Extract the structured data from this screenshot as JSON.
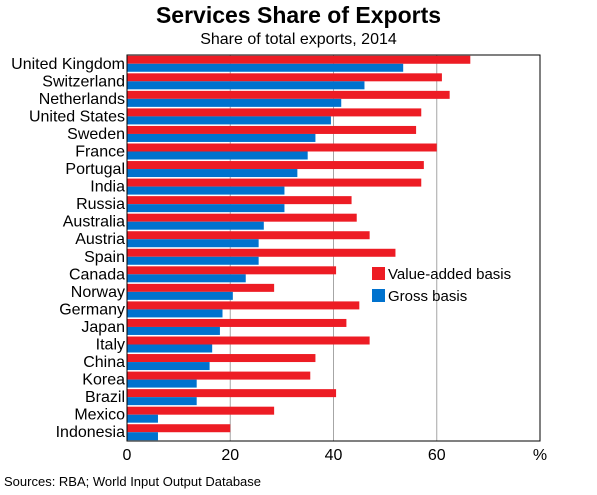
{
  "chart_data": {
    "type": "bar",
    "orientation": "horizontal",
    "title": "Services Share of Exports",
    "subtitle": "Share of total exports, 2014",
    "categories": [
      "United Kingdom",
      "Switzerland",
      "Netherlands",
      "United States",
      "Sweden",
      "France",
      "Portugal",
      "India",
      "Russia",
      "Australia",
      "Austria",
      "Spain",
      "Canada",
      "Norway",
      "Germany",
      "Japan",
      "Italy",
      "China",
      "Korea",
      "Brazil",
      "Mexico",
      "Indonesia"
    ],
    "series": [
      {
        "name": "Value-added basis",
        "color": "#ed1c24",
        "values": [
          66.5,
          61,
          62.5,
          57,
          56,
          60,
          57.5,
          57,
          43.5,
          44.5,
          47,
          52,
          40.5,
          28.5,
          45,
          42.5,
          47,
          36.5,
          35.5,
          40.5,
          28.5,
          20
        ]
      },
      {
        "name": "Gross basis",
        "color": "#0072ce",
        "values": [
          53.5,
          46,
          41.5,
          39.5,
          36.5,
          35,
          33,
          30.5,
          30.5,
          26.5,
          25.5,
          25.5,
          23,
          20.5,
          18.5,
          18,
          16.5,
          16,
          13.5,
          13.5,
          6,
          6
        ]
      }
    ],
    "xlim": [
      0,
      80
    ],
    "xticks": [
      "0",
      "20",
      "40",
      "60"
    ],
    "x_unit": "%",
    "grid": "vertical",
    "legend_position": "right"
  },
  "source": "Sources:   RBA; World Input Output Database"
}
